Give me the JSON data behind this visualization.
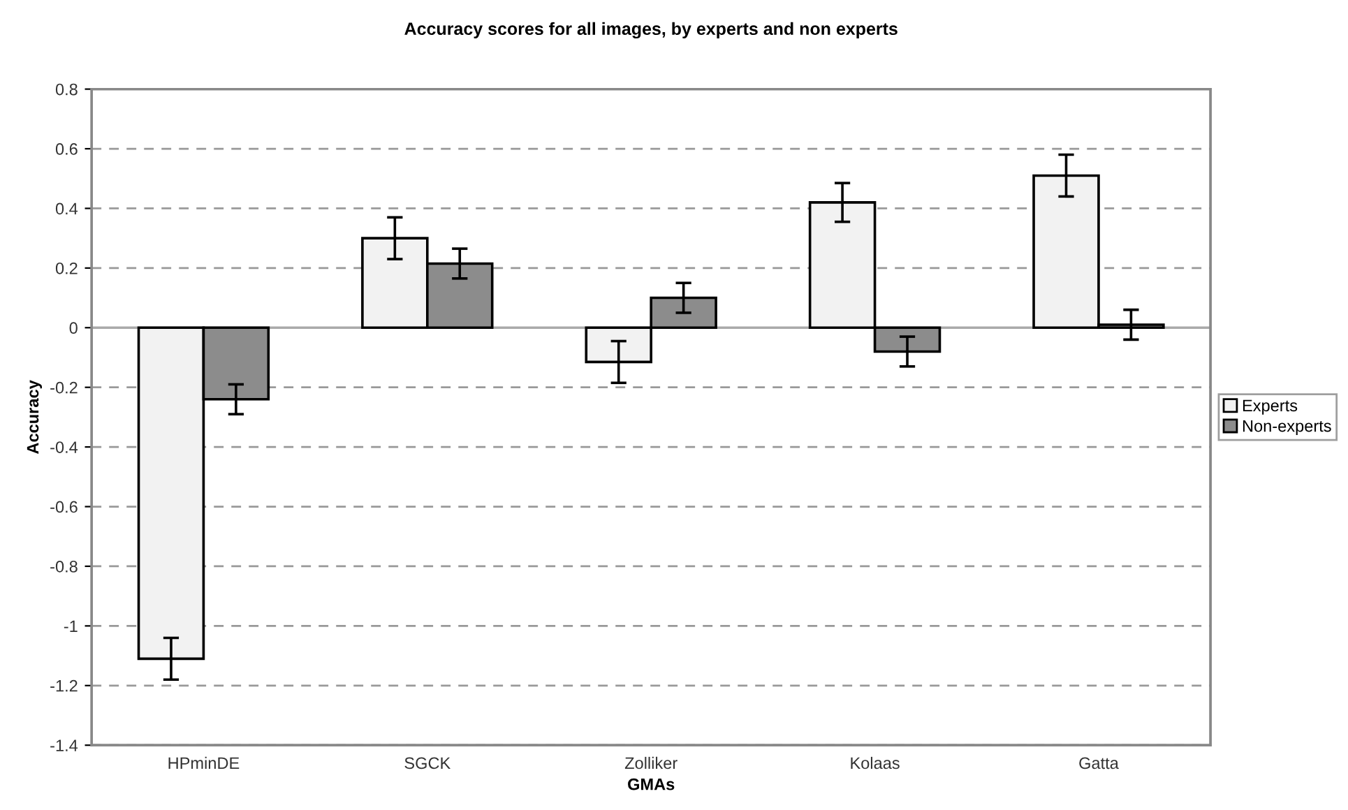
{
  "chart_data": {
    "type": "bar",
    "title": "Accuracy scores for all images, by experts and non experts",
    "xlabel": "GMAs",
    "ylabel": "Accuracy",
    "categories": [
      "HPminDE",
      "SGCK",
      "Zolliker",
      "Kolaas",
      "Gatta"
    ],
    "series": [
      {
        "name": "Experts",
        "color": "#f2f2f2",
        "values": [
          -1.11,
          0.3,
          -0.115,
          0.42,
          0.51
        ],
        "errors": [
          0.07,
          0.07,
          0.07,
          0.065,
          0.07
        ]
      },
      {
        "name": "Non-experts",
        "color": "#8c8c8c",
        "values": [
          -0.24,
          0.215,
          0.1,
          -0.08,
          0.01
        ],
        "errors": [
          0.05,
          0.05,
          0.05,
          0.05,
          0.05
        ]
      }
    ],
    "ylim": [
      -1.4,
      0.8
    ],
    "yticks": [
      -1.4,
      -1.2,
      -1,
      -0.8,
      -0.6,
      -0.4,
      -0.2,
      0,
      0.2,
      0.4,
      0.6,
      0.8
    ],
    "ref_lines": [
      {
        "axis": "y",
        "value": 0,
        "color": "#aaaaaa"
      }
    ],
    "grid": "y",
    "legend": "right"
  }
}
